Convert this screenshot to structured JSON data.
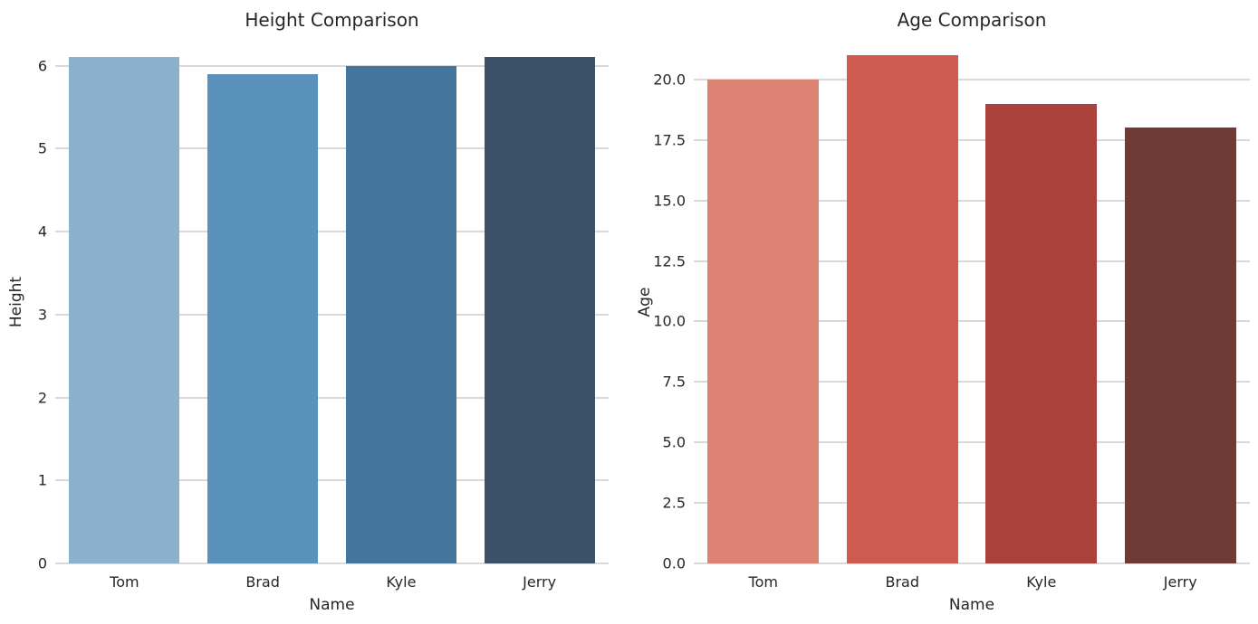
{
  "styles": {
    "background": "#ffffff",
    "grid_color": "#d9d9d9",
    "text_color": "#262626"
  },
  "chart_data": [
    {
      "type": "bar",
      "title": "Height Comparison",
      "xlabel": "Name",
      "ylabel": "Height",
      "categories": [
        "Tom",
        "Brad",
        "Kyle",
        "Jerry"
      ],
      "values": [
        6.1,
        5.9,
        6.0,
        6.1
      ],
      "bar_colors": [
        "#8bb1cc",
        "#5a92bc",
        "#44759c",
        "#3c5268"
      ],
      "ylim": [
        0,
        6.3
      ],
      "yticks": [
        0,
        1,
        2,
        3,
        4,
        5,
        6
      ],
      "ytick_labels": [
        "0",
        "1",
        "2",
        "3",
        "4",
        "5",
        "6"
      ],
      "grid": true,
      "legend": null
    },
    {
      "type": "bar",
      "title": "Age Comparison",
      "xlabel": "Name",
      "ylabel": "Age",
      "categories": [
        "Tom",
        "Brad",
        "Kyle",
        "Jerry"
      ],
      "values": [
        20,
        21,
        19,
        18
      ],
      "bar_colors": [
        "#dd8374",
        "#ce5a50",
        "#a9423a",
        "#6e3b35"
      ],
      "ylim": [
        0,
        21.6
      ],
      "yticks": [
        0,
        2.5,
        5,
        7.5,
        10,
        12.5,
        15,
        17.5,
        20
      ],
      "ytick_labels": [
        "0.0",
        "2.5",
        "5.0",
        "7.5",
        "10.0",
        "12.5",
        "15.0",
        "17.5",
        "20.0"
      ],
      "grid": true,
      "legend": null
    }
  ]
}
